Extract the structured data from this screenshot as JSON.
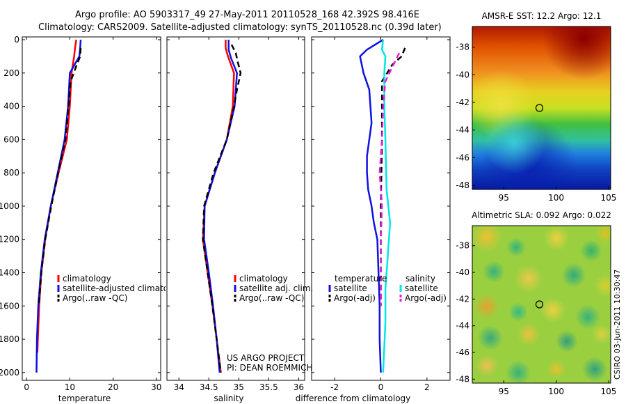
{
  "header": {
    "line1": "Argo profile: AO 5903317_49 27-May-2011 20110528_168 42.392S 98.416E",
    "line2": "Climatology: CARS2009. Satellite-adjusted climatology: synTS_20110528.nc (0.39d later)"
  },
  "side_label": "CSIRO 03-Jun-2011 10:30:47",
  "colors": {
    "red": "#ff0000",
    "blue": "#1010e0",
    "black": "#000000",
    "cyan": "#00e6e6",
    "magenta": "#e020e0"
  },
  "chart_data": [
    {
      "type": "line",
      "name": "temperature-profile",
      "xlabel": "temperature",
      "xlim": [
        -1,
        31
      ],
      "ylim": [
        0,
        2030
      ],
      "y_reversed": true,
      "xticks": [
        0,
        10,
        20,
        30
      ],
      "yticks": [
        0,
        200,
        400,
        600,
        800,
        1000,
        1200,
        1400,
        1600,
        1800,
        2000
      ],
      "legend": {
        "position": "bottom-right",
        "entries": [
          "climatology",
          "satellite-adjusted climatology",
          "Argo(..raw -QC)"
        ]
      },
      "series": [
        {
          "name": "climatology",
          "color": "red",
          "dash": false,
          "points": [
            [
              11.5,
              0
            ],
            [
              11.2,
              50
            ],
            [
              11,
              100
            ],
            [
              10.4,
              200
            ],
            [
              10,
              400
            ],
            [
              9.3,
              600
            ],
            [
              7.4,
              800
            ],
            [
              5.6,
              1000
            ],
            [
              4.3,
              1200
            ],
            [
              3.4,
              1400
            ],
            [
              2.9,
              1600
            ],
            [
              2.6,
              1800
            ],
            [
              2.5,
              1880
            ]
          ]
        },
        {
          "name": "satellite-adjusted climatology",
          "color": "blue",
          "dash": false,
          "points": [
            [
              12.5,
              0
            ],
            [
              12.4,
              50
            ],
            [
              12.2,
              100
            ],
            [
              10,
              200
            ],
            [
              9.6,
              400
            ],
            [
              8.8,
              600
            ],
            [
              7.2,
              800
            ],
            [
              5.6,
              1000
            ],
            [
              4.2,
              1200
            ],
            [
              3.3,
              1400
            ],
            [
              2.7,
              1600
            ],
            [
              2.4,
              1800
            ],
            [
              2.3,
              2000
            ]
          ]
        },
        {
          "name": "Argo(..raw -QC)",
          "color": "black",
          "dash": true,
          "points": [
            [
              12.5,
              50
            ],
            [
              12.4,
              100
            ],
            [
              11.6,
              150
            ],
            [
              10.2,
              250
            ],
            [
              9.7,
              400
            ],
            [
              9,
              600
            ],
            [
              7.3,
              800
            ],
            [
              5.7,
              1000
            ],
            [
              4.3,
              1200
            ],
            [
              3.4,
              1400
            ],
            [
              2.8,
              1600
            ]
          ]
        }
      ]
    },
    {
      "type": "line",
      "name": "salinity-profile",
      "xlabel": "salinity",
      "xlim": [
        33.8,
        36.1
      ],
      "ylim": [
        0,
        2030
      ],
      "y_reversed": true,
      "xticks": [
        34,
        34.5,
        35,
        35.5,
        36
      ],
      "yticks": [
        0,
        200,
        400,
        600,
        800,
        1000,
        1200,
        1400,
        1600,
        1800,
        2000
      ],
      "legend": {
        "position": "bottom-right",
        "entries": [
          "climatology",
          "satellite adj. clim.",
          "Argo(..raw -QC)"
        ]
      },
      "annotation": [
        "US ARGO PROJECT",
        "PI: DEAN ROEMMICH"
      ],
      "series": [
        {
          "name": "climatology",
          "color": "red",
          "dash": false,
          "points": [
            [
              34.78,
              0
            ],
            [
              34.78,
              50
            ],
            [
              34.82,
              100
            ],
            [
              34.92,
              200
            ],
            [
              34.9,
              400
            ],
            [
              34.8,
              600
            ],
            [
              34.6,
              800
            ],
            [
              34.43,
              1000
            ],
            [
              34.4,
              1200
            ],
            [
              34.48,
              1400
            ],
            [
              34.56,
              1600
            ],
            [
              34.63,
              1800
            ],
            [
              34.7,
              2000
            ]
          ]
        },
        {
          "name": "satellite adj. clim.",
          "color": "blue",
          "dash": false,
          "points": [
            [
              34.83,
              0
            ],
            [
              34.83,
              60
            ],
            [
              34.87,
              110
            ],
            [
              34.97,
              200
            ],
            [
              34.93,
              400
            ],
            [
              34.8,
              600
            ],
            [
              34.6,
              800
            ],
            [
              34.43,
              1000
            ],
            [
              34.42,
              1200
            ],
            [
              34.5,
              1400
            ],
            [
              34.57,
              1600
            ],
            [
              34.63,
              1800
            ],
            [
              34.68,
              2000
            ]
          ]
        },
        {
          "name": "Argo(..raw -QC)",
          "color": "black",
          "dash": true,
          "points": [
            [
              34.88,
              30
            ],
            [
              34.95,
              80
            ],
            [
              34.98,
              130
            ],
            [
              35.03,
              200
            ],
            [
              34.97,
              300
            ],
            [
              34.92,
              400
            ],
            [
              34.8,
              600
            ],
            [
              34.58,
              800
            ],
            [
              34.42,
              1000
            ],
            [
              34.4,
              1200
            ],
            [
              34.48,
              1400
            ],
            [
              34.56,
              1600
            ],
            [
              34.63,
              1800
            ],
            [
              34.7,
              2000
            ]
          ]
        }
      ]
    },
    {
      "type": "line",
      "name": "difference-profile",
      "xlabel": "difference from climatology",
      "xlim": [
        -3,
        3
      ],
      "ylim": [
        0,
        2030
      ],
      "y_reversed": true,
      "xticks": [
        -2,
        0,
        2
      ],
      "yticks": [
        0,
        200,
        400,
        600,
        800,
        1000,
        1200,
        1400,
        1600,
        1800,
        2000
      ],
      "legend": {
        "position": "bottom",
        "groups": [
          {
            "title": "temperature",
            "entries": [
              "satellite",
              "Argo(-adj)"
            ]
          },
          {
            "title": "salinity",
            "entries": [
              "satellite",
              "Argo(-adj)"
            ]
          }
        ]
      },
      "series": [
        {
          "name": "temperature satellite",
          "color": "blue",
          "dash": false,
          "points": [
            [
              0.1,
              0
            ],
            [
              -0.6,
              60
            ],
            [
              -0.9,
              100
            ],
            [
              -0.75,
              200
            ],
            [
              -0.5,
              300
            ],
            [
              -0.4,
              500
            ],
            [
              -0.5,
              600
            ],
            [
              -0.6,
              700
            ],
            [
              -0.6,
              800
            ],
            [
              -0.55,
              900
            ],
            [
              -0.4,
              1000
            ],
            [
              -0.3,
              1100
            ],
            [
              -0.15,
              1200
            ],
            [
              -0.1,
              1400
            ],
            [
              -0.05,
              1600
            ],
            [
              -0.05,
              1800
            ],
            [
              0,
              2000
            ]
          ]
        },
        {
          "name": "temperature Argo(-adj)",
          "color": "black",
          "dash": true,
          "points": [
            [
              1.05,
              50
            ],
            [
              0.9,
              100
            ],
            [
              0.5,
              150
            ],
            [
              0.05,
              250
            ],
            [
              0.05,
              600
            ],
            [
              0,
              1000
            ],
            [
              0,
              1600
            ]
          ]
        },
        {
          "name": "salinity satellite",
          "color": "cyan",
          "dash": false,
          "points": [
            [
              0.1,
              0
            ],
            [
              0.05,
              60
            ],
            [
              0.2,
              100
            ],
            [
              0.15,
              200
            ],
            [
              0.15,
              400
            ],
            [
              0.2,
              600
            ],
            [
              0.25,
              900
            ],
            [
              0.4,
              1100
            ],
            [
              0.3,
              1300
            ],
            [
              0.2,
              1500
            ],
            [
              0.2,
              1700
            ],
            [
              0.1,
              2000
            ]
          ]
        },
        {
          "name": "salinity Argo(-adj)",
          "color": "magenta",
          "dash": true,
          "points": [
            [
              0.8,
              80
            ],
            [
              0.55,
              150
            ],
            [
              0.2,
              250
            ],
            [
              0.1,
              400
            ],
            [
              0.05,
              600
            ],
            [
              -0.05,
              800
            ],
            [
              0.05,
              1000
            ],
            [
              0,
              1200
            ],
            [
              0,
              1400
            ],
            [
              0,
              1600
            ]
          ]
        }
      ]
    },
    {
      "type": "heatmap",
      "name": "sst-map",
      "title": "AMSR-E SST: 12.2 Argo: 12.1",
      "xticks": [
        95,
        100,
        105
      ],
      "yticks": [
        -38,
        -40,
        -42,
        -44,
        -46,
        -48
      ],
      "xlim": [
        92,
        105.2
      ],
      "ylim": [
        -48.3,
        -36.5
      ],
      "marker": {
        "lon": 98.4,
        "lat": -42.4
      }
    },
    {
      "type": "heatmap",
      "name": "sla-map",
      "title": "Altimetric SLA: 0.092 Argo: 0.022",
      "xticks": [
        95,
        100,
        105
      ],
      "yticks": [
        -38,
        -40,
        -42,
        -44,
        -46,
        -48
      ],
      "xlim": [
        92,
        105.2
      ],
      "ylim": [
        -48.3,
        -36.5
      ],
      "marker": {
        "lon": 98.4,
        "lat": -42.4
      }
    }
  ]
}
